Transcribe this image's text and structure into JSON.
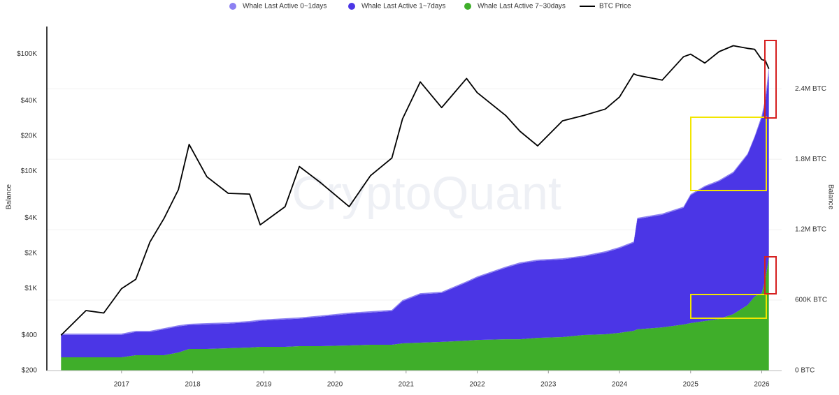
{
  "chart_data": {
    "type": "area",
    "watermark": "CryptoQuant",
    "y_label": "Balance",
    "y2_label": "Balance",
    "legend": "top",
    "grid": true,
    "log_y": true,
    "x": [
      2016.15,
      2016.5,
      2016.75,
      2017.0,
      2017.2,
      2017.4,
      2017.6,
      2017.8,
      2017.95,
      2018.2,
      2018.5,
      2018.8,
      2018.95,
      2019.3,
      2019.5,
      2019.8,
      2020.2,
      2020.5,
      2020.8,
      2020.95,
      2021.2,
      2021.5,
      2021.85,
      2022.0,
      2022.4,
      2022.6,
      2022.85,
      2023.2,
      2023.5,
      2023.8,
      2024.0,
      2024.2,
      2024.25,
      2024.6,
      2024.9,
      2025.0,
      2025.2,
      2025.4,
      2025.6,
      2025.8,
      2025.9,
      2026.0,
      2026.05,
      2026.1
    ],
    "xlim": [
      2015.95,
      2026.28
    ],
    "xticks": [
      2017,
      2018,
      2019,
      2020,
      2021,
      2022,
      2023,
      2024,
      2025,
      2026
    ],
    "ylim": [
      200,
      172000
    ],
    "yticks": [
      {
        "value": 200,
        "label": "$200"
      },
      {
        "value": 400,
        "label": "$400"
      },
      {
        "value": 1000,
        "label": "$1K"
      },
      {
        "value": 2000,
        "label": "$2K"
      },
      {
        "value": 4000,
        "label": "$4K"
      },
      {
        "value": 10000,
        "label": "$10K"
      },
      {
        "value": 20000,
        "label": "$20K"
      },
      {
        "value": 40000,
        "label": "$40K"
      },
      {
        "value": 100000,
        "label": "$100K"
      }
    ],
    "y2lim": [
      0,
      2930000
    ],
    "y2ticks": [
      {
        "value": 0,
        "label": "0 BTC"
      },
      {
        "value": 600000,
        "label": "600K BTC"
      },
      {
        "value": 1200000,
        "label": "1.2M BTC"
      },
      {
        "value": 1800000,
        "label": "1.8M BTC"
      },
      {
        "value": 2400000,
        "label": "2.4M BTC"
      }
    ],
    "series": [
      {
        "name": "Whale Last Active 0~1days",
        "type": "area",
        "axis": "y2",
        "color": "#8c80f2",
        "values": [
          10000,
          10000,
          10000,
          10000,
          10000,
          10000,
          10000,
          10000,
          10000,
          10000,
          10000,
          10000,
          10000,
          10000,
          10000,
          10000,
          10000,
          10000,
          10000,
          10000,
          10000,
          10000,
          10000,
          10000,
          10000,
          10000,
          10000,
          10000,
          10000,
          10000,
          10000,
          10000,
          10000,
          10000,
          10000,
          10000,
          10000,
          10000,
          10000,
          10000,
          10000,
          20000,
          40000,
          60000
        ]
      },
      {
        "name": "Whale Last Active 1~7days",
        "type": "area",
        "axis": "y2",
        "color": "#4b36e6",
        "values": [
          192000,
          192000,
          192000,
          192000,
          198000,
          198000,
          221000,
          222000,
          204000,
          210000,
          210000,
          216000,
          222000,
          234000,
          234000,
          251000,
          269000,
          275000,
          287000,
          358000,
          411000,
          417000,
          495000,
          531000,
          608000,
          644000,
          656000,
          661000,
          667000,
          697000,
          721000,
          750000,
          940000,
          959000,
          994000,
          1089000,
          1142000,
          1172000,
          1202000,
          1280000,
          1356000,
          1495000,
          1505000,
          1574000
        ]
      },
      {
        "name": "Whale Last Active 7~30days",
        "type": "area",
        "axis": "y2",
        "color": "#3fae2a",
        "values": [
          113000,
          113000,
          113000,
          113000,
          131000,
          131000,
          131000,
          154000,
          184000,
          184000,
          190000,
          196000,
          202000,
          202000,
          208000,
          208000,
          214000,
          220000,
          220000,
          232000,
          238000,
          244000,
          255000,
          261000,
          267000,
          267000,
          279000,
          285000,
          303000,
          309000,
          321000,
          339000,
          351000,
          368000,
          392000,
          404000,
          422000,
          440000,
          481000,
          558000,
          630000,
          659000,
          778000,
          956000
        ]
      },
      {
        "name": "BTC Price",
        "type": "line",
        "axis": "y",
        "color": "#000000",
        "values": [
          400,
          650,
          620,
          1000,
          1200,
          2500,
          4000,
          7000,
          17000,
          9000,
          6500,
          6400,
          3500,
          5000,
          11000,
          8000,
          5000,
          9200,
          13000,
          28000,
          58000,
          35000,
          62000,
          47000,
          30000,
          22000,
          16500,
          27000,
          30000,
          34000,
          43000,
          68000,
          66000,
          60000,
          95000,
          100000,
          84000,
          105000,
          118000,
          112000,
          110000,
          90000,
          88000,
          75000
        ]
      }
    ]
  }
}
